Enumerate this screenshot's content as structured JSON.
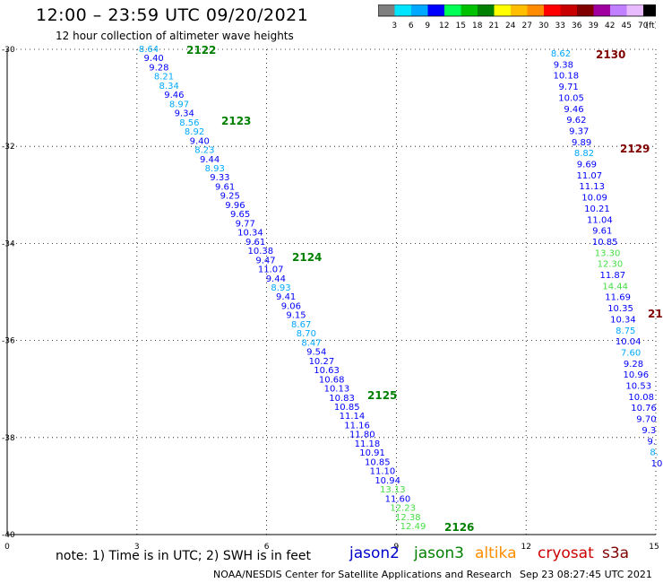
{
  "header": {
    "title": "12:00 – 23:59 UTC 09/20/2021",
    "subtitle": "12 hour collection of altimeter wave heights"
  },
  "color_scale": {
    "labels": [
      "3",
      "6",
      "9",
      "12",
      "15",
      "18",
      "21",
      "24",
      "27",
      "30",
      "33",
      "36",
      "39",
      "42",
      "45",
      "70",
      "(ft)"
    ],
    "colors": [
      "#7f7f7f",
      "#00e5ff",
      "#00a8ff",
      "#0000ff",
      "#00ff55",
      "#00c100",
      "#008000",
      "#ffff00",
      "#ffbf00",
      "#ff8c00",
      "#ff0000",
      "#c80000",
      "#800000",
      "#a000a0",
      "#c080ff",
      "#e8bbff",
      "#000000"
    ]
  },
  "chart_data": {
    "type": "scatter",
    "x_axis": {
      "range": [
        0,
        15
      ],
      "ticks": [
        0,
        3,
        6,
        9,
        12,
        15
      ]
    },
    "y_axis": {
      "range": [
        -40,
        -30
      ],
      "ticks": [
        -30,
        -32,
        -34,
        -36,
        -38,
        -40
      ]
    },
    "grid": "dotted",
    "pass_labels": [
      {
        "text": "2122",
        "color": "#008000"
      },
      {
        "text": "2123",
        "color": "#008000"
      },
      {
        "text": "2124",
        "color": "#008000"
      },
      {
        "text": "2125",
        "color": "#008000"
      },
      {
        "text": "2126",
        "color": "#008000"
      },
      {
        "text": "2130",
        "color": "#800000"
      },
      {
        "text": "2129",
        "color": "#800000"
      },
      {
        "text": "21",
        "color": "#800000"
      }
    ],
    "tracks": [
      {
        "values": [
          "8.64",
          "9.40",
          "9.28",
          "8.21",
          "8.34",
          "9.46",
          "8.97",
          "9.34",
          "8.56",
          "8.92",
          "9.40",
          "8.23",
          "9.44",
          "8.93",
          "9.33",
          "9.61",
          "9.25",
          "9.96",
          "9.65",
          "9.77",
          "10.34",
          "9.61",
          "10.38",
          "9.47",
          "11.07",
          "9.44",
          "8.93",
          "9.41",
          "9.06",
          "9.15",
          "8.67",
          "8.70",
          "8.47",
          "9.54",
          "10.27",
          "10.63",
          "10.68",
          "10.13",
          "10.83",
          "10.85",
          "11.14",
          "11.16",
          "11.80",
          "11.18",
          "10.91",
          "10.85",
          "11.10",
          "10.94",
          "13.13",
          "11.60",
          "12.23",
          "12.38",
          "12.49"
        ]
      },
      {
        "values": [
          "8.62",
          "9.38",
          "10.18",
          "9.71",
          "10.05",
          "9.46",
          "9.62",
          "9.37",
          "9.89",
          "8.82",
          "9.69",
          "11.07",
          "11.13",
          "10.09",
          "10.21",
          "11.04",
          "9.61",
          "10.85",
          "13.30",
          "12.30",
          "11.87",
          "14.44",
          "11.69",
          "10.35",
          "10.34",
          "8.75",
          "10.04",
          "7.60",
          "9.28",
          "10.96",
          "10.53",
          "10.08",
          "10.76",
          "9.70",
          "9.3",
          "9.",
          "8.",
          "10"
        ]
      }
    ]
  },
  "footer": {
    "note": "note: 1) Time is in UTC; 2) SWH is in feet",
    "satellites": [
      {
        "name": "jason2",
        "color": "#0000cc"
      },
      {
        "name": "jason3",
        "color": "#008000"
      },
      {
        "name": "altika",
        "color": "#ff8c00"
      },
      {
        "name": "cryosat",
        "color": "#cc0000"
      },
      {
        "name": "s3a",
        "color": "#800000"
      }
    ],
    "credit": "NOAA/NESDIS Center for Satellite Applications and Research",
    "timestamp": "Sep 23 08:27:45 UTC 2021"
  }
}
